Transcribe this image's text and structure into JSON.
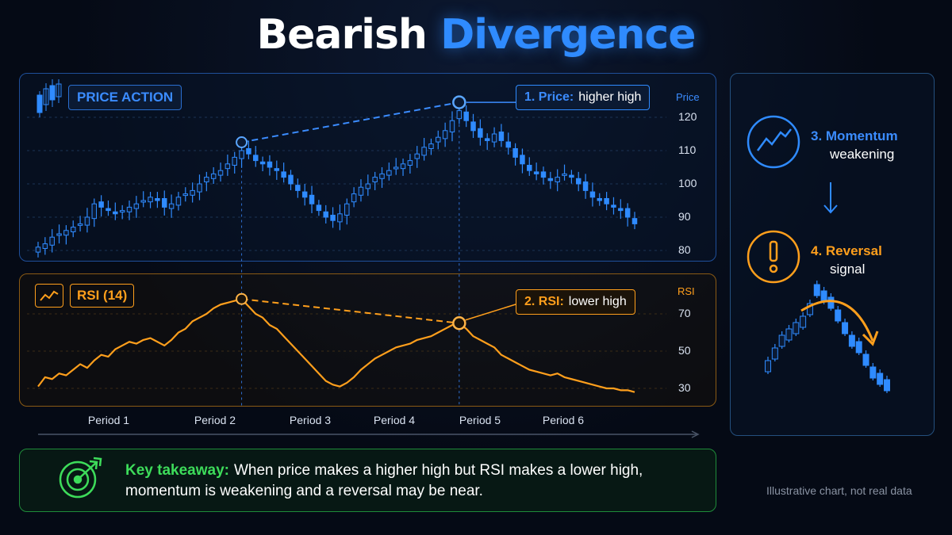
{
  "title": {
    "part1": "Bearish",
    "part2": "Divergence"
  },
  "colors": {
    "price": "#2f8bff",
    "rsi": "#ff9f1c",
    "takeaway": "#3ddc5a",
    "panel_border_price": "#1f4f9a",
    "panel_border_rsi": "#8a5a14"
  },
  "price_panel": {
    "label": "PRICE ACTION",
    "axis_title": "Price",
    "icon": "candlestick-icon"
  },
  "rsi_panel": {
    "label": "RSI (14)",
    "axis_title": "RSI",
    "icon": "trend-line-icon"
  },
  "callouts": {
    "price": {
      "number": "1. Price:",
      "text": "higher high"
    },
    "rsi": {
      "number": "2. RSI:",
      "text": "lower high"
    }
  },
  "side": {
    "momentum": {
      "number": "3. Momentum",
      "text": "weakening",
      "icon": "trend-up-circle-icon"
    },
    "arrow_icon": "arrow-down-icon",
    "reversal": {
      "number": "4. Reversal",
      "text": "signal",
      "icon": "exclamation-circle-icon"
    },
    "mini_icon": "reversal-candles-icon"
  },
  "takeaway": {
    "label": "Key takeaway:",
    "line1": "When price makes a higher high but RSI makes a lower high,",
    "line2": "momentum is weakening and a reversal may be near.",
    "icon": "target-icon"
  },
  "disclaimer": "Illustrative chart, not real data",
  "chart_data": [
    {
      "type": "candlestick",
      "title": "PRICE ACTION",
      "ylabel": "Price",
      "ylim": [
        78,
        125
      ],
      "yticks": [
        80,
        90,
        100,
        110,
        120
      ],
      "x_ticks": [
        "Period 1",
        "Period 2",
        "Period 3",
        "Period 4",
        "Period 5",
        "Period 6"
      ],
      "close": [
        81,
        82,
        84,
        85,
        86,
        87,
        88,
        90,
        94,
        93,
        92,
        91,
        92,
        93,
        94,
        95,
        96,
        95,
        93,
        94,
        96,
        97,
        98,
        100,
        102,
        103,
        104,
        106,
        108,
        110,
        109,
        107,
        106,
        105,
        104,
        102,
        100,
        98,
        96,
        94,
        92,
        90,
        89,
        91,
        94,
        97,
        99,
        100,
        102,
        103,
        104,
        105,
        106,
        107,
        109,
        111,
        112,
        114,
        116,
        119,
        122,
        119,
        116,
        114,
        113,
        115,
        113,
        111,
        108,
        106,
        104,
        103,
        102,
        101,
        102,
        103,
        102,
        100,
        98,
        96,
        95,
        94,
        93,
        92,
        90,
        88
      ],
      "grid": true,
      "annotations": [
        {
          "point": "higher high",
          "from_index": 29,
          "to_index": 60
        }
      ]
    },
    {
      "type": "line",
      "title": "RSI (14)",
      "ylabel": "RSI",
      "ylim": [
        25,
        80
      ],
      "yticks": [
        30,
        50,
        70
      ],
      "series": [
        {
          "name": "RSI (14)",
          "values": [
            31,
            36,
            35,
            38,
            37,
            40,
            43,
            41,
            45,
            48,
            47,
            51,
            53,
            55,
            54,
            56,
            57,
            55,
            53,
            56,
            60,
            62,
            66,
            68,
            70,
            73,
            75,
            76,
            77,
            78,
            74,
            70,
            68,
            64,
            62,
            58,
            54,
            50,
            46,
            42,
            38,
            34,
            32,
            31,
            33,
            36,
            40,
            43,
            46,
            48,
            50,
            52,
            53,
            54,
            56,
            57,
            58,
            60,
            62,
            64,
            65,
            62,
            58,
            56,
            54,
            52,
            48,
            46,
            44,
            42,
            40,
            39,
            38,
            37,
            38,
            36,
            35,
            34,
            33,
            32,
            31,
            30,
            30,
            29,
            29,
            28
          ]
        }
      ],
      "grid": true,
      "annotations": [
        {
          "point": "lower high",
          "from_index": 29,
          "to_index": 60
        }
      ]
    }
  ]
}
